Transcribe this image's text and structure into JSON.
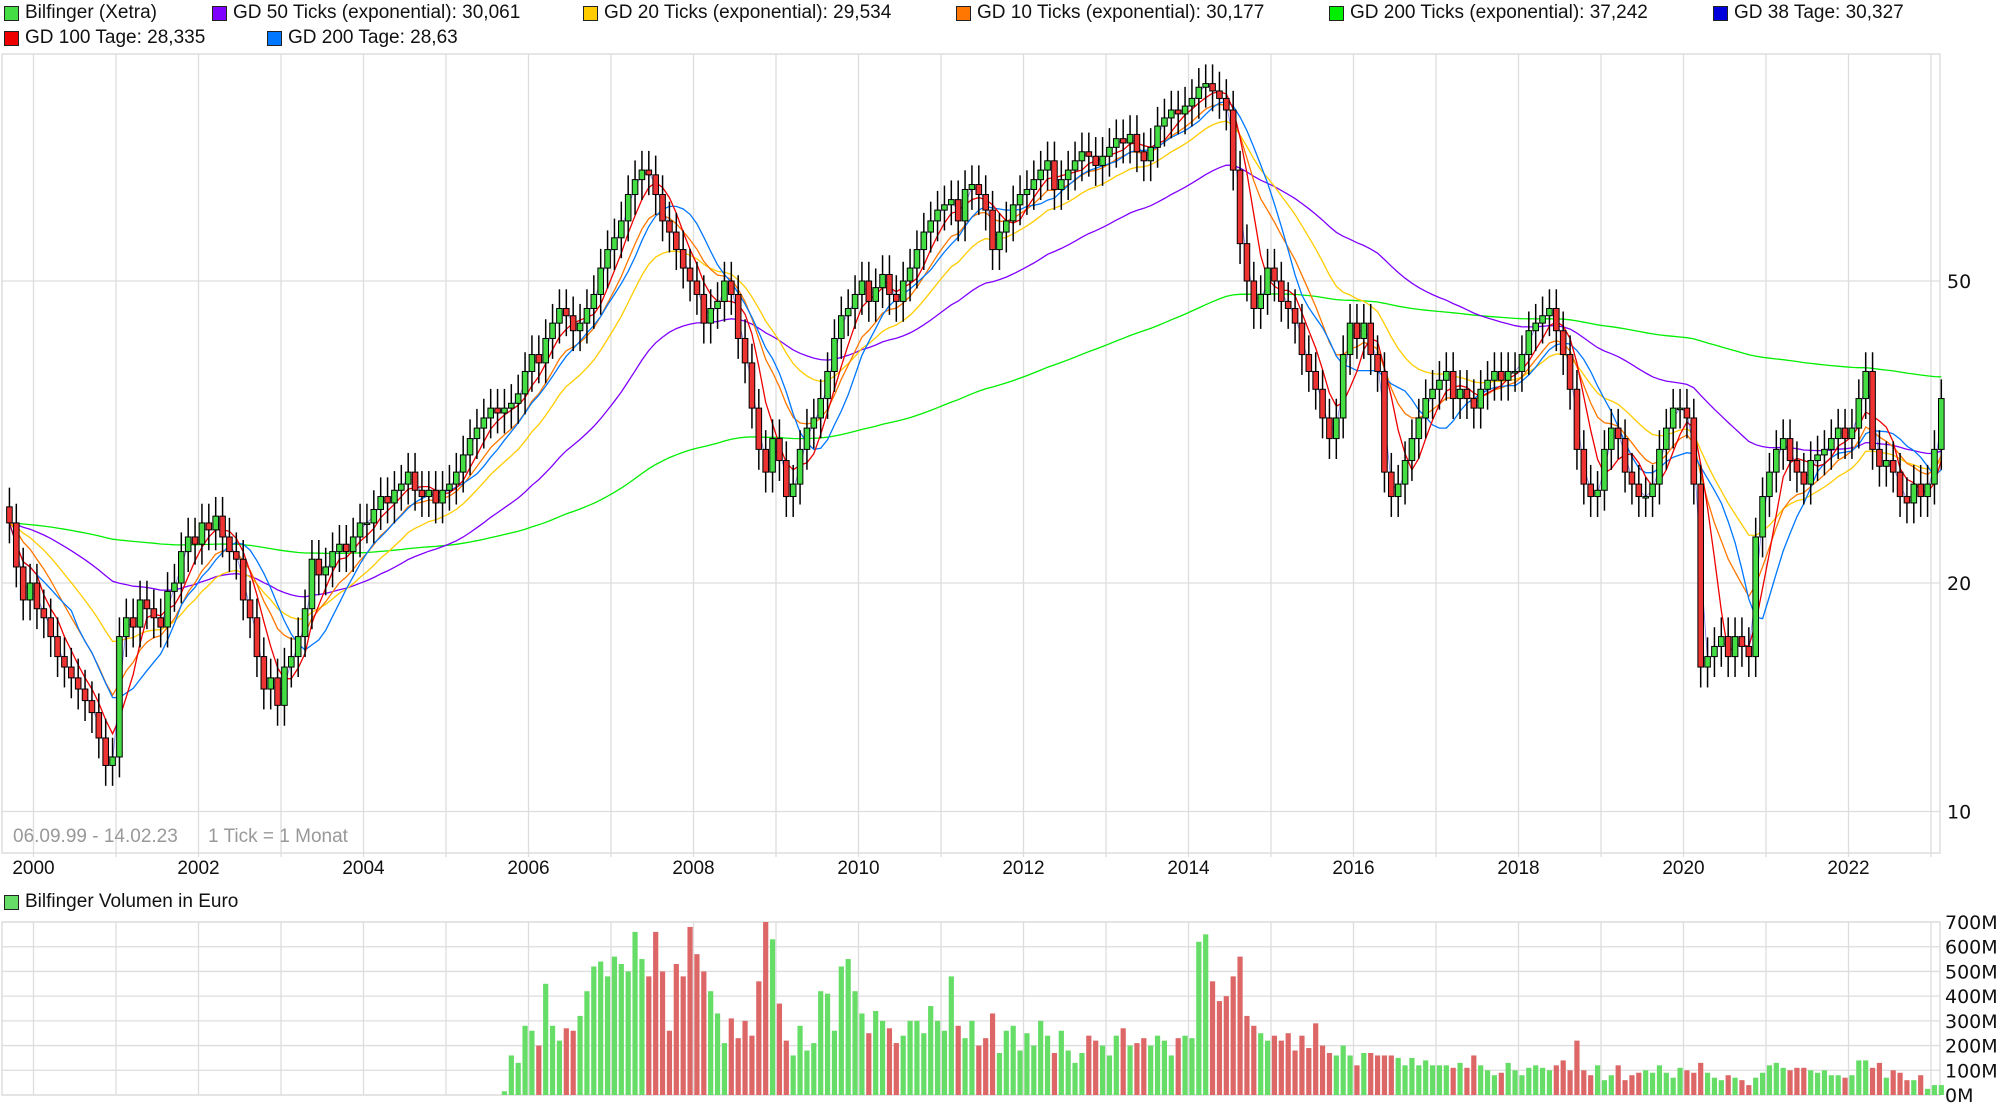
{
  "legend": {
    "price": [
      {
        "label": "Bilfinger (Xetra)",
        "color": "#44dd44"
      },
      {
        "label": "GD 50 Ticks (exponential): 30,061",
        "color": "#8000ff"
      },
      {
        "label": "GD 20 Ticks (exponential): 29,534",
        "color": "#ffcc00"
      },
      {
        "label": "GD 10 Ticks (exponential): 30,177",
        "color": "#ff7700"
      },
      {
        "label": "GD 200 Ticks (exponential): 37,242",
        "color": "#00ee00"
      },
      {
        "label": "GD 38 Tage: 30,327",
        "color": "#0000dd"
      },
      {
        "label": "GD 100 Tage: 28,335",
        "color": "#ee0000"
      },
      {
        "label": "GD 200 Tage: 28,63",
        "color": "#0077ff"
      }
    ],
    "volume": {
      "label": "Bilfinger Volumen in Euro",
      "color": "#66dd66"
    }
  },
  "info": {
    "range": "06.09.99 - 14.02.23",
    "tick": "1 Tick = 1 Monat"
  },
  "chart_data": [
    {
      "type": "candlestick",
      "title": "",
      "y_scale": "log",
      "y_ticks": [
        "10",
        "20",
        "50"
      ],
      "x_ticks": [
        "2000",
        "2002",
        "2004",
        "2006",
        "2008",
        "2010",
        "2012",
        "2014",
        "2016",
        "2018",
        "2020",
        "2022"
      ],
      "start_month": "1999-09",
      "end_month": "2023-02",
      "grid": true,
      "legend_placement": "top",
      "colors": {
        "up": "#44dd44",
        "down": "#ee3333"
      },
      "close": [
        24,
        21,
        19,
        20,
        18.5,
        18,
        17,
        16,
        15.5,
        15,
        14.5,
        14,
        13.5,
        12.5,
        11.5,
        11.8,
        17,
        18,
        17.5,
        19,
        18.5,
        18,
        17.5,
        19.5,
        20,
        22,
        23,
        22.5,
        24,
        23.5,
        24.5,
        23,
        22,
        21.5,
        19,
        18,
        16,
        14.5,
        15,
        13.8,
        15.5,
        16,
        17,
        18.5,
        21.5,
        20.5,
        21,
        22,
        22.5,
        22,
        23,
        24,
        24,
        25,
        26,
        25.5,
        26.5,
        27,
        28,
        26.5,
        26,
        26.5,
        25.5,
        26.5,
        27,
        28,
        29.5,
        31,
        32,
        33,
        34,
        33.5,
        34,
        34.5,
        35.5,
        38,
        40,
        39,
        42,
        44,
        46,
        45,
        43,
        44,
        46,
        48,
        52,
        55,
        57,
        60,
        65,
        68,
        70,
        69,
        65,
        60,
        58,
        55,
        52,
        50,
        48,
        44,
        46,
        47,
        50,
        48,
        42,
        39,
        34,
        30,
        28,
        31,
        29,
        26,
        27,
        30,
        32,
        33,
        35,
        38,
        42,
        45,
        46,
        48,
        50,
        47,
        49,
        51,
        48,
        47,
        50,
        52,
        55,
        58,
        60,
        62,
        63,
        64,
        60,
        66,
        67,
        65,
        62,
        55,
        58,
        60,
        63,
        65,
        66,
        68,
        70,
        72,
        66,
        68,
        70,
        72,
        74,
        73,
        71,
        73,
        75,
        77,
        76,
        78,
        74,
        72,
        75,
        80,
        82,
        84,
        83,
        85,
        87,
        90,
        91,
        89,
        87,
        84,
        70,
        56,
        50,
        46,
        48,
        52,
        50,
        47,
        46,
        44,
        40,
        38,
        36,
        33,
        31,
        33,
        40,
        44,
        42,
        44,
        40,
        38,
        28,
        26,
        27,
        29,
        31,
        33,
        35,
        36,
        37,
        38,
        35,
        36,
        35,
        34,
        36,
        37,
        38,
        37,
        38,
        38,
        40,
        43,
        44,
        45,
        46,
        43,
        40,
        36,
        30,
        27,
        26,
        26.5,
        30,
        32,
        31,
        28,
        27,
        26,
        26,
        27,
        30,
        32,
        34,
        34,
        33,
        27,
        15.5,
        16,
        16.5,
        17,
        16,
        17,
        16.5,
        16,
        23,
        26,
        28,
        30,
        31,
        29,
        28,
        27,
        29,
        29.5,
        30,
        31,
        32,
        31,
        32,
        35,
        38,
        30,
        28.5,
        29,
        28,
        26,
        25.5,
        27,
        26,
        27,
        30,
        35
      ]
    },
    {
      "type": "bar",
      "title": "Bilfinger Volumen in Euro",
      "unit": "M",
      "y_ticks": [
        "0M",
        "100M",
        "200M",
        "300M",
        "400M",
        "500M",
        "600M",
        "700M"
      ],
      "ylim": [
        0,
        700
      ],
      "start_month": "2005-09",
      "values": [
        15,
        160,
        130,
        280,
        260,
        200,
        450,
        280,
        220,
        270,
        260,
        320,
        420,
        520,
        540,
        480,
        560,
        530,
        500,
        660,
        550,
        480,
        660,
        500,
        260,
        530,
        480,
        680,
        570,
        500,
        420,
        330,
        210,
        310,
        230,
        300,
        240,
        460,
        700,
        630,
        370,
        220,
        160,
        280,
        180,
        210,
        420,
        410,
        260,
        520,
        550,
        420,
        330,
        250,
        340,
        300,
        270,
        210,
        240,
        300,
        300,
        250,
        360,
        300,
        260,
        480,
        280,
        230,
        300,
        200,
        230,
        330,
        170,
        260,
        280,
        180,
        250,
        200,
        300,
        240,
        170,
        260,
        180,
        130,
        170,
        240,
        220,
        200,
        160,
        240,
        270,
        200,
        210,
        230,
        200,
        240,
        220,
        160,
        230,
        240,
        230,
        620,
        650,
        460,
        380,
        400,
        480,
        560,
        320,
        280,
        250,
        220,
        240,
        220,
        250,
        180,
        240,
        190,
        290,
        200,
        170,
        160,
        200,
        160,
        120,
        170,
        170,
        160,
        160,
        160,
        150,
        120,
        150,
        120,
        140,
        120,
        120,
        120,
        110,
        130,
        110,
        160,
        120,
        100,
        80,
        90,
        130,
        100,
        80,
        110,
        120,
        110,
        100,
        120,
        140,
        100,
        220,
        100,
        80,
        120,
        60,
        80,
        120,
        60,
        80,
        90,
        100,
        90,
        120,
        90,
        70,
        110,
        100,
        90,
        130,
        90,
        70,
        60,
        80,
        70,
        60,
        40,
        70,
        90,
        120,
        130,
        110,
        100,
        110,
        110,
        100,
        90,
        100,
        80,
        80,
        70,
        80,
        140,
        140,
        110,
        130,
        70,
        100,
        90,
        60,
        60,
        80,
        25,
        40,
        40
      ]
    }
  ]
}
